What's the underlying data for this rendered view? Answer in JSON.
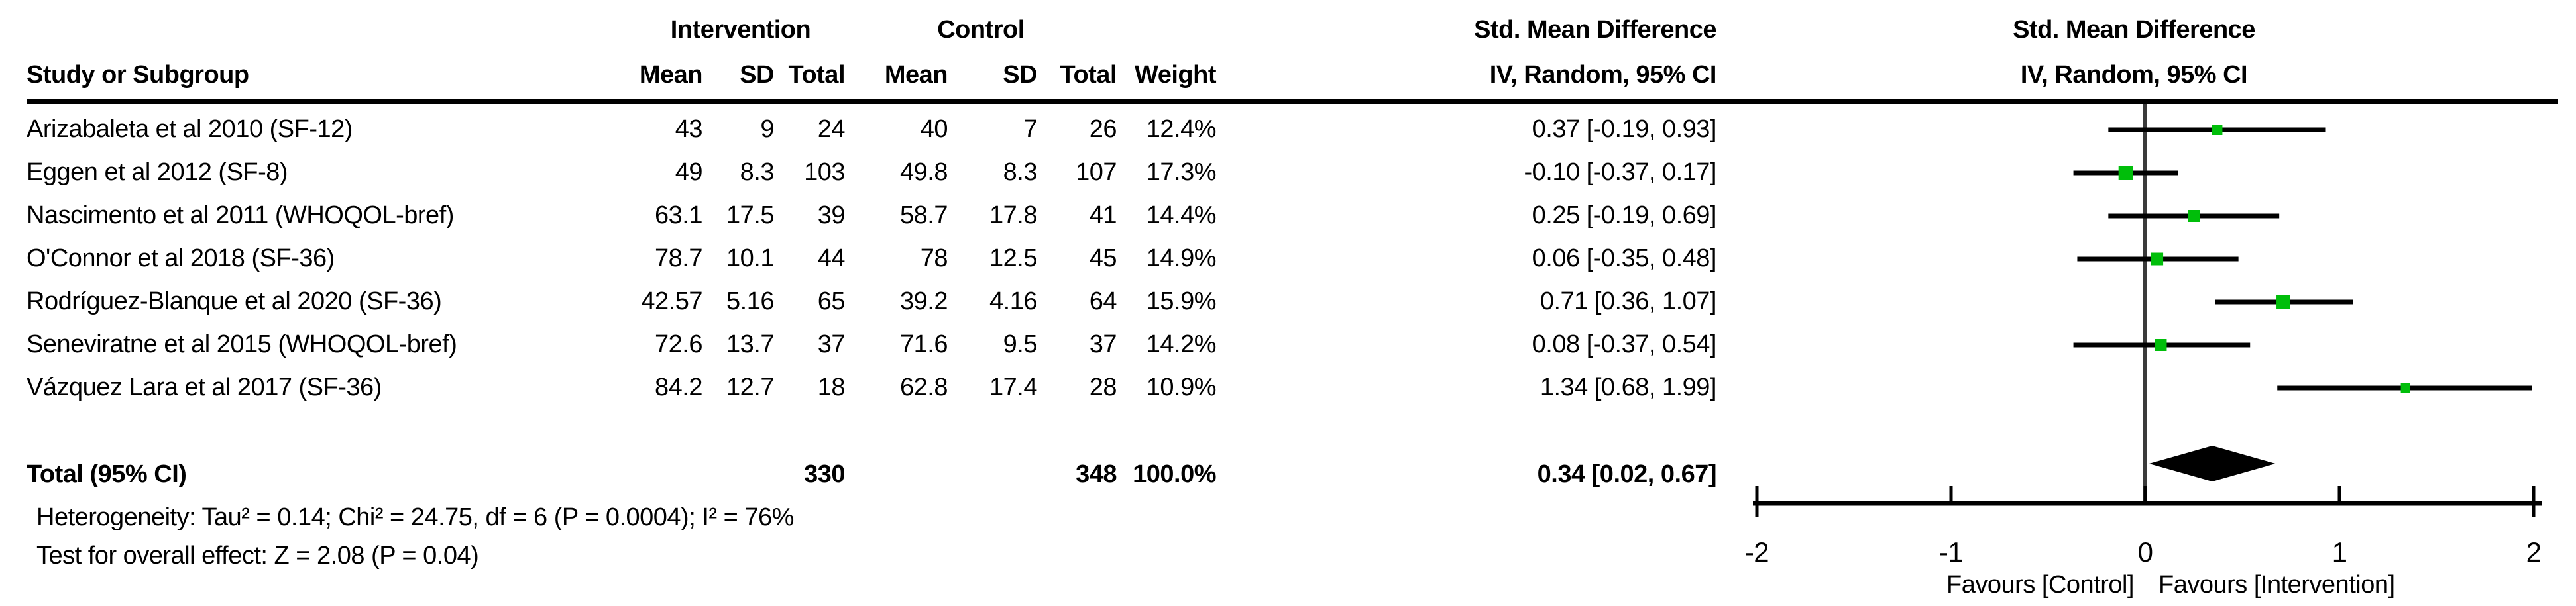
{
  "table": {
    "header": {
      "study": "Study or Subgroup",
      "group1": "Intervention",
      "group2": "Control",
      "effect": "Std. Mean Difference",
      "mean": "Mean",
      "sd": "SD",
      "total": "Total",
      "weight": "Weight",
      "method": "IV, Random, 95% CI"
    },
    "rows": [
      {
        "study": "Arizabaleta et al 2010 (SF-12)",
        "i_mean": "43",
        "i_sd": "9",
        "i_total": "24",
        "c_mean": "40",
        "c_sd": "7",
        "c_total": "26",
        "weight": "12.4%",
        "ci": "0.37 [-0.19, 0.93]",
        "est": 0.37,
        "lo": -0.19,
        "hi": 0.93,
        "weight_value": 12.4
      },
      {
        "study": "Eggen et al 2012 (SF-8)",
        "i_mean": "49",
        "i_sd": "8.3",
        "i_total": "103",
        "c_mean": "49.8",
        "c_sd": "8.3",
        "c_total": "107",
        "weight": "17.3%",
        "ci": "-0.10 [-0.37, 0.17]",
        "est": -0.1,
        "lo": -0.37,
        "hi": 0.17,
        "weight_value": 17.3
      },
      {
        "study": "Nascimento et al 2011 (WHOQOL-bref)",
        "i_mean": "63.1",
        "i_sd": "17.5",
        "i_total": "39",
        "c_mean": "58.7",
        "c_sd": "17.8",
        "c_total": "41",
        "weight": "14.4%",
        "ci": "0.25 [-0.19, 0.69]",
        "est": 0.25,
        "lo": -0.19,
        "hi": 0.69,
        "weight_value": 14.4
      },
      {
        "study": "O'Connor et al 2018 (SF-36)",
        "i_mean": "78.7",
        "i_sd": "10.1",
        "i_total": "44",
        "c_mean": "78",
        "c_sd": "12.5",
        "c_total": "45",
        "weight": "14.9%",
        "ci": "0.06 [-0.35, 0.48]",
        "est": 0.06,
        "lo": -0.35,
        "hi": 0.48,
        "weight_value": 14.9
      },
      {
        "study": "Rodríguez-Blanque et al 2020 (SF-36)",
        "i_mean": "42.57",
        "i_sd": "5.16",
        "i_total": "65",
        "c_mean": "39.2",
        "c_sd": "4.16",
        "c_total": "64",
        "weight": "15.9%",
        "ci": "0.71 [0.36, 1.07]",
        "est": 0.71,
        "lo": 0.36,
        "hi": 1.07,
        "weight_value": 15.9
      },
      {
        "study": "Seneviratne et al 2015 (WHOQOL-bref)",
        "i_mean": "72.6",
        "i_sd": "13.7",
        "i_total": "37",
        "c_mean": "71.6",
        "c_sd": "9.5",
        "c_total": "37",
        "weight": "14.2%",
        "ci": "0.08 [-0.37, 0.54]",
        "est": 0.08,
        "lo": -0.37,
        "hi": 0.54,
        "weight_value": 14.2
      },
      {
        "study": "Vázquez Lara et al 2017 (SF-36)",
        "i_mean": "84.2",
        "i_sd": "12.7",
        "i_total": "18",
        "c_mean": "62.8",
        "c_sd": "17.4",
        "c_total": "28",
        "weight": "10.9%",
        "ci": "1.34 [0.68, 1.99]",
        "est": 1.34,
        "lo": 0.68,
        "hi": 1.99,
        "weight_value": 10.9
      }
    ],
    "total_row": {
      "label": "Total (95% CI)",
      "i_total": "330",
      "c_total": "348",
      "weight": "100.0%",
      "ci": "0.34 [0.02, 0.67]",
      "est": 0.34,
      "lo": 0.02,
      "hi": 0.67
    },
    "heterogeneity": "Heterogeneity: Tau² = 0.14; Chi² = 24.75, df = 6 (P = 0.0004); I² = 76%",
    "overall_effect": "Test for overall effect: Z = 2.08 (P = 0.04)"
  },
  "plot": {
    "header_line1": "Std. Mean Difference",
    "header_line2": "IV, Random, 95% CI",
    "axis_ticks": [
      "-2",
      "-1",
      "0",
      "1",
      "2"
    ],
    "favours_left": "Favours [Control]",
    "favours_right": "Favours [Intervention]",
    "marker_color": "#00BE0A",
    "line_color": "#000000",
    "zero_line_color": "#3a3a3a",
    "diamond_color": "#000000"
  },
  "chart_data": {
    "type": "scatter",
    "subtype": "forest-plot",
    "title": "Std. Mean Difference",
    "xlabel": "IV, Random, 95% CI",
    "categories": [
      "Arizabaleta et al 2010 (SF-12)",
      "Eggen et al 2012 (SF-8)",
      "Nascimento et al 2011 (WHOQOL-bref)",
      "O'Connor et al 2018 (SF-36)",
      "Rodríguez-Blanque et al 2020 (SF-36)",
      "Seneviratne et al 2015 (WHOQOL-bref)",
      "Vázquez Lara et al 2017 (SF-36)"
    ],
    "series": [
      {
        "name": "Std. Mean Difference",
        "values": [
          0.37,
          -0.1,
          0.25,
          0.06,
          0.71,
          0.08,
          1.34
        ]
      },
      {
        "name": "CI lower",
        "values": [
          -0.19,
          -0.37,
          -0.19,
          -0.35,
          0.36,
          -0.37,
          0.68
        ]
      },
      {
        "name": "CI upper",
        "values": [
          0.93,
          0.17,
          0.69,
          0.48,
          1.07,
          0.54,
          1.99
        ]
      },
      {
        "name": "Weight %",
        "values": [
          12.4,
          17.3,
          14.4,
          14.9,
          15.9,
          14.2,
          10.9
        ]
      }
    ],
    "pooled": {
      "label": "Total (95% CI)",
      "est": 0.34,
      "lo": 0.02,
      "hi": 0.67,
      "intervention_total": 330,
      "control_total": 348,
      "weight": "100.0%"
    },
    "xlim": [
      -2,
      2
    ],
    "xticks": [
      -2,
      -1,
      0,
      1,
      2
    ],
    "axis_label_left": "Favours [Control]",
    "axis_label_right": "Favours [Intervention]",
    "grid": false,
    "legend": false
  }
}
